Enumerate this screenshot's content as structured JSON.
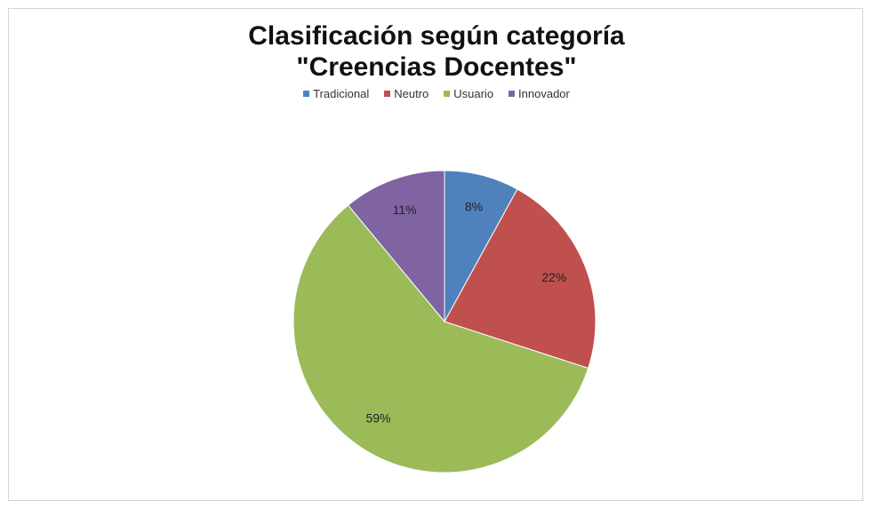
{
  "chart_data": {
    "type": "pie",
    "title_lines": [
      "Clasificación según categoría",
      "\"Creencias Docentes\""
    ],
    "categories": [
      "Tradicional",
      "Neutro",
      "Usuario",
      "Innovador"
    ],
    "values": [
      8,
      22,
      59,
      11
    ],
    "labels": [
      "8%",
      "22%",
      "59%",
      "11%"
    ],
    "colors": [
      "#4f81bd",
      "#c0504d",
      "#9bbb59",
      "#8064a2"
    ],
    "legend_position": "top",
    "start_angle": "top, clockwise"
  }
}
